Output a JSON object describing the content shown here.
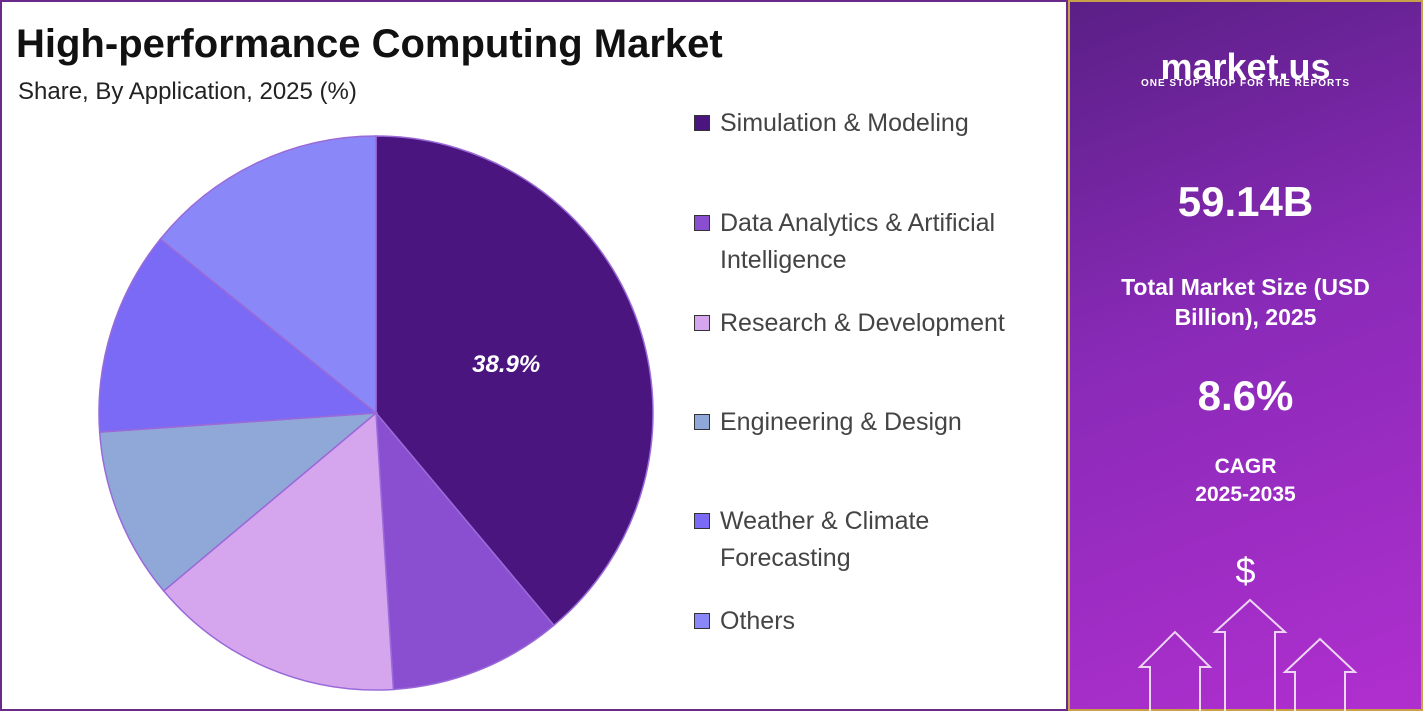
{
  "chart_data": {
    "type": "pie",
    "title": "High-performance Computing Market",
    "subtitle": "Share, By Application, 2025 (%)",
    "categories": [
      "Simulation & Modeling",
      "Data Analytics & Artificial Intelligence",
      "Research & Development",
      "Engineering & Design",
      "Weather & Climate Forecasting",
      "Others"
    ],
    "values": [
      38.9,
      10.1,
      14.9,
      10.0,
      11.9,
      14.2
    ],
    "value_labels": [
      "38.9%",
      null,
      null,
      null,
      null,
      null
    ],
    "colors": [
      "#4b1580",
      "#8a4fd0",
      "#d5a6ee",
      "#8fa8d8",
      "#7a6af5",
      "#8a88f8"
    ]
  },
  "sidebar": {
    "brand": "market.us",
    "tagline": "ONE STOP SHOP FOR THE REPORTS",
    "market_size": "59.14B",
    "market_size_label": "Total Market Size (USD Billion), 2025",
    "cagr": "8.6%",
    "cagr_label": "CAGR",
    "cagr_period": "2025-2035",
    "icon": "$"
  }
}
